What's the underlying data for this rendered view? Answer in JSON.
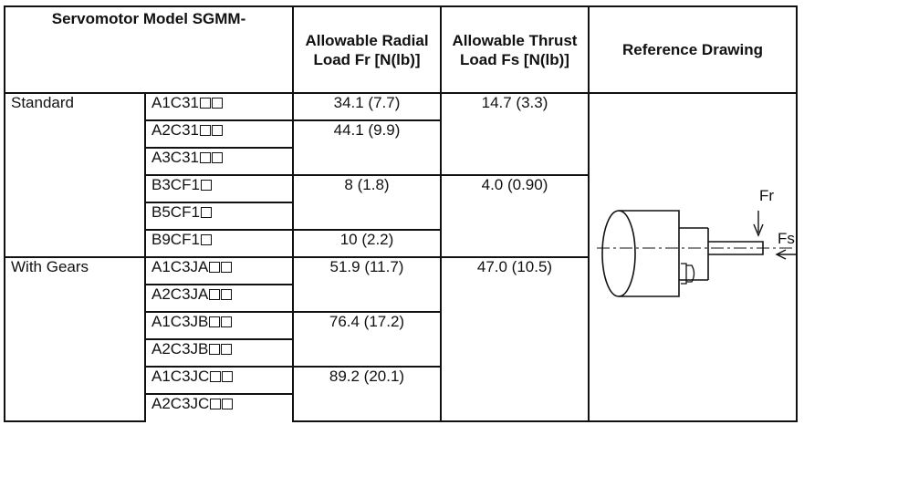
{
  "headers": {
    "model": "Servomotor Model SGMM-",
    "radial": "Allowable Radial Load Fr [N(lb)]",
    "thrust": "Allowable Thrust Load Fs [N(lb)]",
    "drawing": "Reference Drawing"
  },
  "groups": {
    "standard": "Standard",
    "gears": "With Gears"
  },
  "models": [
    {
      "prefix": "A1C31",
      "boxes": 2
    },
    {
      "prefix": "A2C31",
      "boxes": 2
    },
    {
      "prefix": "A3C31",
      "boxes": 2
    },
    {
      "prefix": "B3CF1",
      "boxes": 1
    },
    {
      "prefix": "B5CF1",
      "boxes": 1
    },
    {
      "prefix": "B9CF1",
      "boxes": 1
    },
    {
      "prefix": "A1C3JA",
      "boxes": 2
    },
    {
      "prefix": "A2C3JA",
      "boxes": 2
    },
    {
      "prefix": "A1C3JB",
      "boxes": 2
    },
    {
      "prefix": "A2C3JB",
      "boxes": 2
    },
    {
      "prefix": "A1C3JC",
      "boxes": 2
    },
    {
      "prefix": "A2C3JC",
      "boxes": 2
    }
  ],
  "radial": [
    "34.1 (7.7)",
    "44.1 (9.9)",
    "8 (1.8)",
    "10 (2.2)",
    "51.9 (11.7)",
    "76.4 (17.2)",
    "89.2 (20.1)"
  ],
  "thrust": [
    "14.7 (3.3)",
    "4.0 (0.90)",
    "47.0 (10.5)"
  ],
  "drawing_labels": {
    "fr": "Fr",
    "fs": "Fs"
  }
}
